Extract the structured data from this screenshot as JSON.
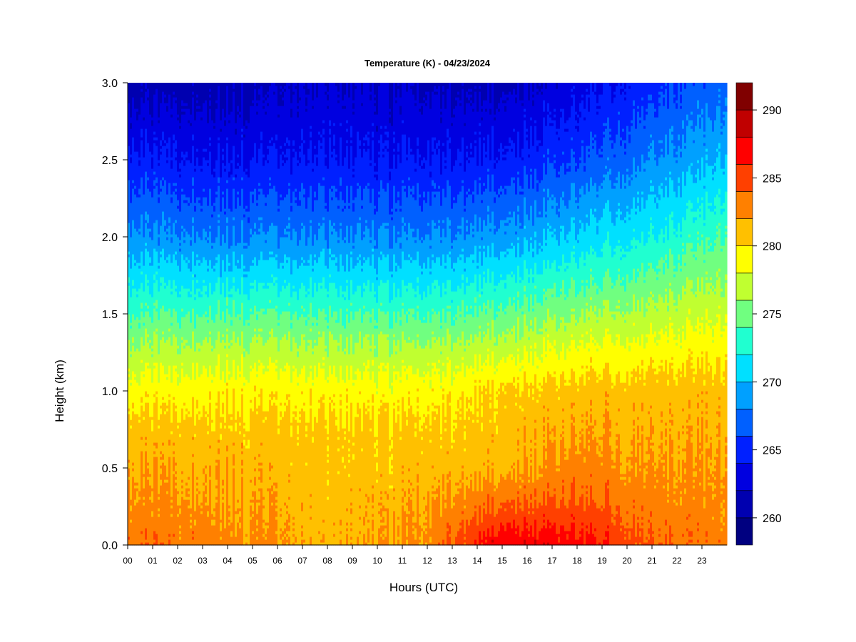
{
  "chart_data": {
    "type": "heatmap",
    "title": "Temperature (K) - 04/23/2024",
    "xlabel": "Hours (UTC)",
    "ylabel": "Height (km)",
    "x_ticks": [
      "00",
      "01",
      "02",
      "03",
      "04",
      "05",
      "06",
      "07",
      "08",
      "09",
      "10",
      "11",
      "12",
      "13",
      "14",
      "15",
      "16",
      "17",
      "18",
      "19",
      "20",
      "21",
      "22",
      "23"
    ],
    "x_range": [
      0,
      24
    ],
    "y_ticks": [
      "0.0",
      "0.5",
      "1.0",
      "1.5",
      "2.0",
      "2.5",
      "3.0"
    ],
    "y_range": [
      0,
      3.0
    ],
    "colorbar": {
      "label_values": [
        "260",
        "265",
        "270",
        "275",
        "280",
        "285",
        "290"
      ],
      "range": [
        258,
        292
      ],
      "level_step": 2,
      "colors": [
        "#000080",
        "#0000b0",
        "#0000e0",
        "#0020ff",
        "#0060ff",
        "#00a0ff",
        "#00e0ff",
        "#20ffd0",
        "#70ff80",
        "#c0ff30",
        "#ffff00",
        "#ffc000",
        "#ff8000",
        "#ff4000",
        "#ff0000",
        "#c00000",
        "#800000"
      ]
    },
    "profiles": [
      {
        "hour": 0,
        "temps_by_height": [
          {
            "height_km": 0.0,
            "temp_k": 283.5
          },
          {
            "height_km": 0.7,
            "temp_k": 281.0
          },
          {
            "height_km": 1.0,
            "temp_k": 279.0
          },
          {
            "height_km": 1.3,
            "temp_k": 276.0
          },
          {
            "height_km": 2.0,
            "temp_k": 268.5
          },
          {
            "height_km": 2.5,
            "temp_k": 264.5
          },
          {
            "height_km": 3.0,
            "temp_k": 261.0
          }
        ]
      },
      {
        "hour": 4,
        "temps_by_height": [
          {
            "height_km": 0.0,
            "temp_k": 283.0
          },
          {
            "height_km": 0.7,
            "temp_k": 281.0
          },
          {
            "height_km": 1.0,
            "temp_k": 279.5
          },
          {
            "height_km": 1.3,
            "temp_k": 276.5
          },
          {
            "height_km": 2.0,
            "temp_k": 268.0
          },
          {
            "height_km": 2.5,
            "temp_k": 264.0
          },
          {
            "height_km": 3.0,
            "temp_k": 261.0
          }
        ]
      },
      {
        "hour": 8,
        "temps_by_height": [
          {
            "height_km": 0.0,
            "temp_k": 281.0
          },
          {
            "height_km": 0.7,
            "temp_k": 280.5
          },
          {
            "height_km": 1.0,
            "temp_k": 279.0
          },
          {
            "height_km": 1.3,
            "temp_k": 276.0
          },
          {
            "height_km": 2.0,
            "temp_k": 268.0
          },
          {
            "height_km": 2.5,
            "temp_k": 264.0
          },
          {
            "height_km": 3.0,
            "temp_k": 262.0
          }
        ]
      },
      {
        "hour": 12,
        "temps_by_height": [
          {
            "height_km": 0.0,
            "temp_k": 282.5
          },
          {
            "height_km": 0.7,
            "temp_k": 280.5
          },
          {
            "height_km": 1.0,
            "temp_k": 279.0
          },
          {
            "height_km": 1.3,
            "temp_k": 276.0
          },
          {
            "height_km": 2.0,
            "temp_k": 268.0
          },
          {
            "height_km": 2.5,
            "temp_k": 264.0
          },
          {
            "height_km": 3.0,
            "temp_k": 261.5
          }
        ]
      },
      {
        "hour": 15,
        "temps_by_height": [
          {
            "height_km": 0.0,
            "temp_k": 288.0
          },
          {
            "height_km": 0.2,
            "temp_k": 285.0
          },
          {
            "height_km": 0.5,
            "temp_k": 281.5
          },
          {
            "height_km": 1.0,
            "temp_k": 280.5
          },
          {
            "height_km": 1.3,
            "temp_k": 277.0
          },
          {
            "height_km": 2.0,
            "temp_k": 269.0
          },
          {
            "height_km": 2.5,
            "temp_k": 264.5
          },
          {
            "height_km": 3.0,
            "temp_k": 261.5
          }
        ]
      },
      {
        "hour": 18,
        "temps_by_height": [
          {
            "height_km": 0.0,
            "temp_k": 287.0
          },
          {
            "height_km": 0.3,
            "temp_k": 284.0
          },
          {
            "height_km": 0.7,
            "temp_k": 282.0
          },
          {
            "height_km": 1.0,
            "temp_k": 281.0
          },
          {
            "height_km": 1.3,
            "temp_k": 278.0
          },
          {
            "height_km": 2.0,
            "temp_k": 270.5
          },
          {
            "height_km": 2.5,
            "temp_k": 266.0
          },
          {
            "height_km": 3.0,
            "temp_k": 263.0
          }
        ]
      },
      {
        "hour": 21,
        "temps_by_height": [
          {
            "height_km": 0.0,
            "temp_k": 284.0
          },
          {
            "height_km": 0.5,
            "temp_k": 282.0
          },
          {
            "height_km": 1.0,
            "temp_k": 281.0
          },
          {
            "height_km": 1.3,
            "temp_k": 278.5
          },
          {
            "height_km": 2.0,
            "temp_k": 272.0
          },
          {
            "height_km": 2.5,
            "temp_k": 268.0
          },
          {
            "height_km": 3.0,
            "temp_k": 265.0
          }
        ]
      },
      {
        "hour": 24,
        "temps_by_height": [
          {
            "height_km": 0.0,
            "temp_k": 283.0
          },
          {
            "height_km": 0.5,
            "temp_k": 282.0
          },
          {
            "height_km": 1.0,
            "temp_k": 281.0
          },
          {
            "height_km": 1.3,
            "temp_k": 279.0
          },
          {
            "height_km": 2.0,
            "temp_k": 274.0
          },
          {
            "height_km": 2.5,
            "temp_k": 270.0
          },
          {
            "height_km": 3.0,
            "temp_k": 267.0
          }
        ]
      }
    ]
  }
}
